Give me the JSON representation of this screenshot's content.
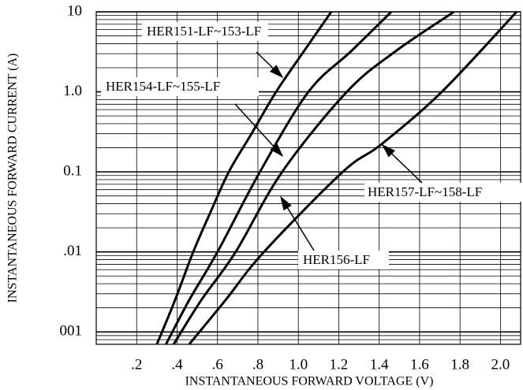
{
  "chart_data": {
    "type": "line",
    "xlabel": "INSTANTANEOUS FORWARD VOLTAGE (V)",
    "ylabel": "INSTANTANEOUS FORWARD CURRENT (A)",
    "xlim": [
      0,
      2.1
    ],
    "ylim": [
      0.0007,
      10
    ],
    "log_y": true,
    "grid": true,
    "color": "#000000",
    "xticks": [
      {
        "value": 0.2,
        "label": ".2"
      },
      {
        "value": 0.4,
        "label": ".4"
      },
      {
        "value": 0.6,
        "label": ".6"
      },
      {
        "value": 0.8,
        "label": ".8"
      },
      {
        "value": 1,
        "label": "1.0"
      },
      1.2,
      1.4,
      1.6,
      1.8,
      {
        "value": 2,
        "label": "2.0"
      }
    ],
    "yticks": [
      {
        "value": 0.001,
        "label": "001"
      },
      {
        "value": 0.01,
        "label": ".01"
      },
      0.1,
      {
        "value": 1,
        "label": "1.0"
      },
      10
    ],
    "series": [
      {
        "name": "HER151-LF~153-LF",
        "x": [
          0.3,
          0.39,
          0.48,
          0.562,
          0.656,
          0.765,
          0.89,
          1.027,
          1.163
        ],
        "values": [
          0.0007,
          0.0025,
          0.01,
          0.03,
          0.1,
          0.29,
          1,
          3.2,
          10
        ]
      },
      {
        "name": "HER154-LF~155-LF",
        "x": [
          0.345,
          0.46,
          0.6,
          0.81,
          1.05,
          1.26,
          1.46
        ],
        "values": [
          0.0007,
          0.0025,
          0.01,
          0.1,
          1,
          3.2,
          10
        ]
      },
      {
        "name": "HER156-LF",
        "x": [
          0.383,
          0.52,
          0.69,
          0.92,
          1.24,
          1.48,
          1.77
        ],
        "values": [
          0.0007,
          0.0025,
          0.01,
          0.1,
          1,
          3.2,
          10
        ]
      },
      {
        "name": "HER157-LF~158-LF",
        "x": [
          0.46,
          0.64,
          0.83,
          1.22,
          1.41,
          1.71,
          2.08
        ],
        "values": [
          0.0007,
          0.0025,
          0.01,
          0.1,
          0.22,
          1,
          10
        ]
      }
    ]
  }
}
